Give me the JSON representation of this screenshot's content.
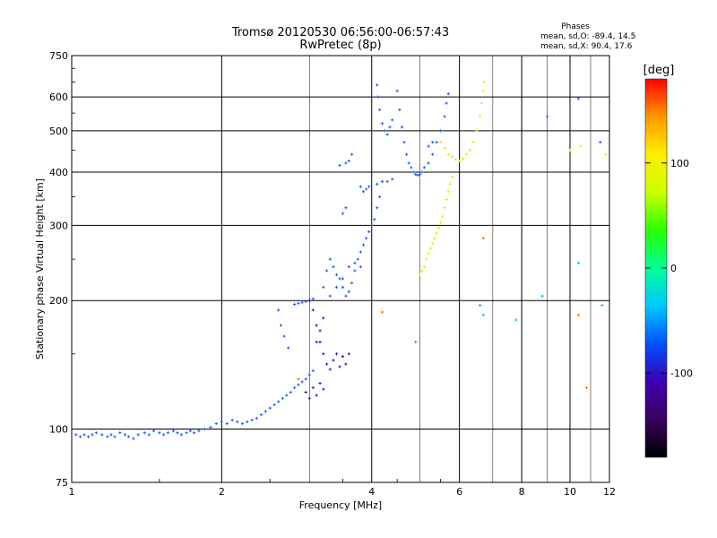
{
  "chart_data": {
    "type": "scatter",
    "title": "Tromsø 20120530 06:56:00-06:57:43",
    "subtitle": "RwPretec (8p)",
    "xlabel": "Frequency [MHz]",
    "ylabel": "Stationary phase Virtual Height [km]",
    "x_scale": "log",
    "y_scale": "log",
    "xlim": [
      1,
      12
    ],
    "ylim": [
      75,
      750
    ],
    "x_ticks": [
      1,
      2,
      4,
      6,
      8,
      10,
      12
    ],
    "y_ticks": [
      75,
      100,
      200,
      300,
      400,
      500,
      600,
      750
    ],
    "x_minor": [
      3,
      5,
      7,
      9,
      11
    ],
    "grid": true,
    "stats": {
      "heading": "Phases",
      "line_o": "mean, sd,O: -89.4, 14.5",
      "line_x": "mean, sd,X: 90.4, 17.6"
    },
    "colorbar": {
      "label": "[deg]",
      "range": [
        -180,
        180
      ],
      "ticks": [
        -100,
        0,
        100
      ],
      "colors": [
        "#000000",
        "#3a005c",
        "#3c00b4",
        "#0050ff",
        "#00c8ff",
        "#00ff96",
        "#28ff00",
        "#ccff00",
        "#ffee00",
        "#ff9900",
        "#ff0000"
      ]
    },
    "series": [
      {
        "name": "",
        "color": "#1e5cf0",
        "points": [
          [
            1.02,
            97
          ],
          [
            1.04,
            96
          ],
          [
            1.06,
            97
          ],
          [
            1.08,
            96
          ],
          [
            1.1,
            97
          ],
          [
            1.12,
            98
          ],
          [
            1.15,
            97
          ],
          [
            1.18,
            96
          ],
          [
            1.2,
            97
          ],
          [
            1.22,
            96
          ],
          [
            1.25,
            98
          ],
          [
            1.28,
            97
          ],
          [
            1.3,
            96
          ],
          [
            1.33,
            95
          ],
          [
            1.36,
            97
          ],
          [
            1.4,
            98
          ],
          [
            1.43,
            97
          ],
          [
            1.46,
            99
          ],
          [
            1.5,
            98
          ],
          [
            1.53,
            97
          ],
          [
            1.56,
            98
          ],
          [
            1.6,
            99
          ],
          [
            1.63,
            98
          ],
          [
            1.66,
            97
          ],
          [
            1.7,
            98
          ],
          [
            1.73,
            99
          ],
          [
            1.76,
            98
          ],
          [
            1.8,
            99
          ],
          [
            1.85,
            100
          ],
          [
            1.9,
            101
          ],
          [
            1.95,
            103
          ],
          [
            2.0,
            104
          ],
          [
            2.05,
            103
          ],
          [
            2.1,
            105
          ],
          [
            2.15,
            104
          ],
          [
            2.2,
            103
          ],
          [
            2.25,
            104
          ],
          [
            2.3,
            105
          ],
          [
            2.35,
            106
          ],
          [
            2.4,
            108
          ],
          [
            2.45,
            110
          ],
          [
            2.5,
            112
          ],
          [
            2.55,
            114
          ],
          [
            2.6,
            116
          ],
          [
            2.65,
            118
          ],
          [
            2.7,
            120
          ],
          [
            2.75,
            122
          ],
          [
            2.8,
            125
          ],
          [
            2.85,
            127
          ],
          [
            2.9,
            129
          ],
          [
            2.95,
            131
          ],
          [
            3.0,
            134
          ],
          [
            3.05,
            137
          ],
          [
            2.6,
            190
          ],
          [
            2.63,
            175
          ],
          [
            2.67,
            165
          ],
          [
            2.72,
            155
          ],
          [
            2.8,
            196
          ],
          [
            2.85,
            197
          ],
          [
            2.9,
            198
          ],
          [
            2.95,
            199
          ],
          [
            3.0,
            200
          ],
          [
            3.05,
            202
          ],
          [
            3.2,
            215
          ],
          [
            3.25,
            235
          ],
          [
            3.3,
            250
          ],
          [
            3.35,
            240
          ],
          [
            3.4,
            230
          ],
          [
            3.45,
            225
          ],
          [
            3.5,
            215
          ],
          [
            3.55,
            205
          ],
          [
            3.6,
            210
          ],
          [
            3.65,
            220
          ],
          [
            3.7,
            235
          ],
          [
            3.75,
            250
          ],
          [
            3.8,
            260
          ],
          [
            3.85,
            270
          ],
          [
            3.9,
            280
          ],
          [
            3.95,
            290
          ],
          [
            4.0,
            300
          ],
          [
            4.05,
            310
          ],
          [
            4.1,
            330
          ],
          [
            4.15,
            350
          ],
          [
            3.3,
            205
          ],
          [
            3.4,
            215
          ],
          [
            3.5,
            225
          ],
          [
            3.6,
            240
          ],
          [
            3.7,
            245
          ],
          [
            3.8,
            240
          ],
          [
            3.8,
            370
          ],
          [
            3.85,
            360
          ],
          [
            3.9,
            365
          ],
          [
            3.95,
            370
          ],
          [
            4.1,
            375
          ],
          [
            4.2,
            380
          ],
          [
            4.3,
            380
          ],
          [
            4.4,
            385
          ],
          [
            3.45,
            415
          ],
          [
            3.55,
            420
          ],
          [
            3.6,
            425
          ],
          [
            3.65,
            440
          ],
          [
            3.5,
            320
          ],
          [
            3.55,
            330
          ],
          [
            4.1,
            640
          ],
          [
            4.12,
            600
          ],
          [
            4.15,
            560
          ],
          [
            4.2,
            520
          ],
          [
            4.25,
            500
          ],
          [
            4.3,
            490
          ],
          [
            4.35,
            510
          ],
          [
            4.4,
            530
          ],
          [
            4.5,
            620
          ],
          [
            4.55,
            560
          ],
          [
            4.6,
            510
          ],
          [
            4.65,
            470
          ],
          [
            4.7,
            440
          ],
          [
            4.75,
            420
          ],
          [
            4.8,
            410
          ],
          [
            4.85,
            400
          ],
          [
            4.9,
            395
          ],
          [
            4.95,
            393
          ],
          [
            5.0,
            395
          ],
          [
            5.05,
            400
          ],
          [
            5.1,
            410
          ],
          [
            5.2,
            420
          ],
          [
            5.3,
            440
          ],
          [
            5.4,
            470
          ],
          [
            5.5,
            500
          ],
          [
            5.6,
            540
          ],
          [
            5.65,
            580
          ],
          [
            5.7,
            610
          ],
          [
            5.2,
            460
          ],
          [
            5.3,
            470
          ],
          [
            9.0,
            540
          ],
          [
            10.4,
            595
          ],
          [
            11.5,
            470
          ]
        ]
      },
      {
        "name": "",
        "color": "#3a10c8",
        "points": [
          [
            3.0,
            200
          ],
          [
            3.05,
            190
          ],
          [
            3.1,
            175
          ],
          [
            3.15,
            160
          ],
          [
            3.2,
            150
          ],
          [
            3.25,
            142
          ],
          [
            3.3,
            138
          ],
          [
            3.35,
            145
          ],
          [
            3.4,
            150
          ],
          [
            3.45,
            140
          ],
          [
            3.5,
            148
          ],
          [
            3.55,
            142
          ],
          [
            3.6,
            150
          ],
          [
            3.1,
            160
          ],
          [
            3.15,
            170
          ],
          [
            3.2,
            182
          ],
          [
            2.95,
            122
          ],
          [
            3.0,
            118
          ],
          [
            3.05,
            125
          ],
          [
            3.1,
            120
          ],
          [
            3.15,
            128
          ],
          [
            3.2,
            124
          ]
        ]
      },
      {
        "name": "",
        "color": "#f0e800",
        "points": [
          [
            5.0,
            230
          ],
          [
            5.05,
            235
          ],
          [
            5.1,
            240
          ],
          [
            5.15,
            250
          ],
          [
            5.2,
            258
          ],
          [
            5.25,
            265
          ],
          [
            5.3,
            272
          ],
          [
            5.35,
            280
          ],
          [
            5.4,
            288
          ],
          [
            5.45,
            296
          ],
          [
            5.5,
            305
          ],
          [
            5.55,
            315
          ],
          [
            5.6,
            330
          ],
          [
            5.65,
            345
          ],
          [
            5.7,
            360
          ],
          [
            5.75,
            375
          ],
          [
            5.8,
            390
          ],
          [
            5.5,
            470
          ],
          [
            5.6,
            455
          ],
          [
            5.7,
            440
          ],
          [
            5.8,
            435
          ],
          [
            5.9,
            428
          ],
          [
            6.0,
            425
          ],
          [
            6.1,
            430
          ],
          [
            6.2,
            440
          ],
          [
            6.3,
            450
          ],
          [
            6.4,
            470
          ],
          [
            6.5,
            500
          ],
          [
            6.6,
            540
          ],
          [
            6.65,
            580
          ],
          [
            6.7,
            620
          ],
          [
            6.72,
            650
          ],
          [
            10.0,
            450
          ],
          [
            10.5,
            460
          ],
          [
            11.8,
            440
          ]
        ]
      },
      {
        "name": "",
        "color": "#ff7000",
        "points": [
          [
            2.85,
            131
          ],
          [
            4.2,
            188
          ],
          [
            6.7,
            280
          ],
          [
            10.4,
            185
          ],
          [
            10.8,
            125
          ]
        ]
      },
      {
        "name": "",
        "color": "#00b8f0",
        "points": [
          [
            4.9,
            160
          ],
          [
            6.6,
            195
          ],
          [
            6.7,
            185
          ],
          [
            7.8,
            180
          ],
          [
            8.8,
            205
          ],
          [
            10.4,
            245
          ],
          [
            11.6,
            195
          ]
        ]
      }
    ]
  }
}
